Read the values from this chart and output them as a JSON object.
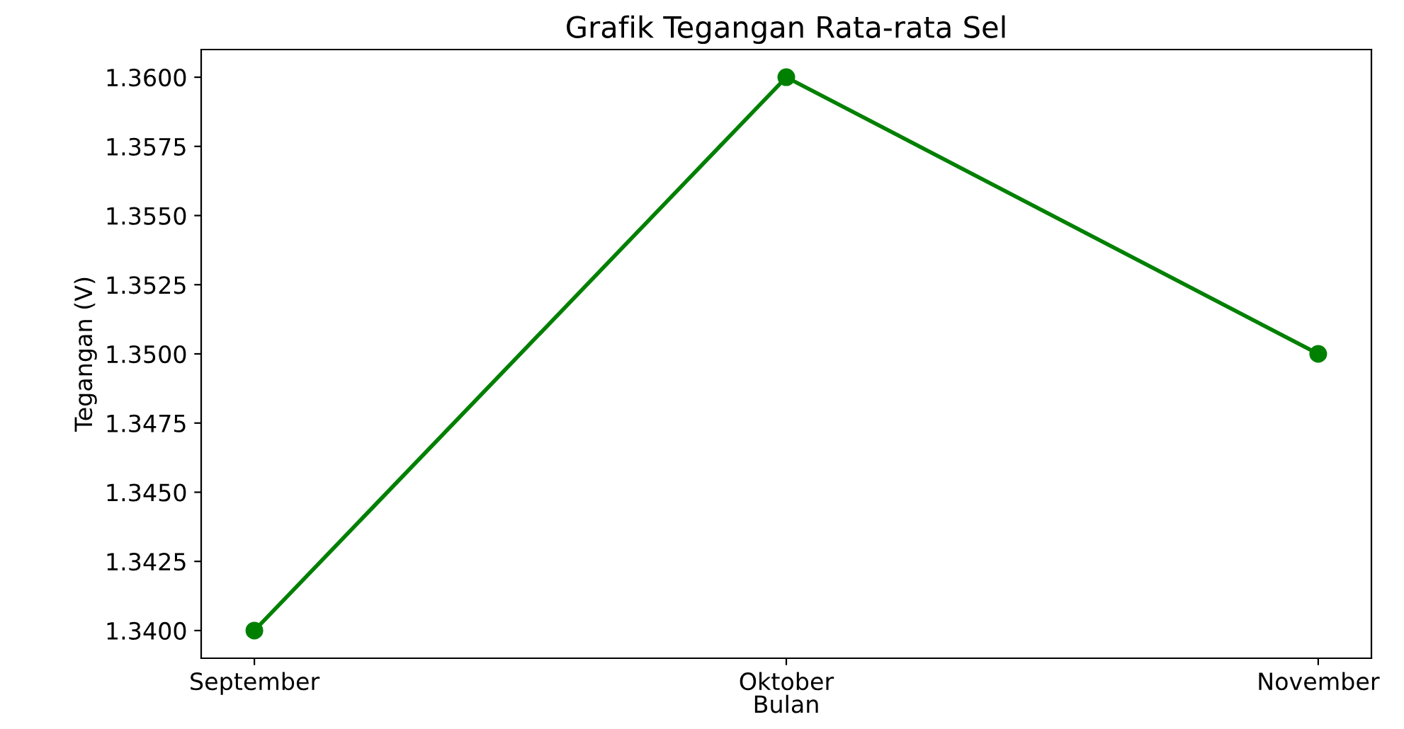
{
  "chart_data": {
    "type": "line",
    "title": "Grafik Tegangan Rata-rata Sel",
    "xlabel": "Bulan",
    "ylabel": "Tegangan (V)",
    "categories": [
      "September",
      "Oktober",
      "November"
    ],
    "series": [
      {
        "color": "#008000",
        "values": [
          1.34,
          1.36,
          1.35
        ]
      }
    ],
    "ylim": [
      1.339,
      1.361
    ],
    "yticks": [
      {
        "value": 1.34,
        "label": "1.3400"
      },
      {
        "value": 1.3425,
        "label": "1.3425"
      },
      {
        "value": 1.345,
        "label": "1.3450"
      },
      {
        "value": 1.3475,
        "label": "1.3475"
      },
      {
        "value": 1.35,
        "label": "1.3500"
      },
      {
        "value": 1.3525,
        "label": "1.3525"
      },
      {
        "value": 1.355,
        "label": "1.3550"
      },
      {
        "value": 1.3575,
        "label": "1.3575"
      },
      {
        "value": 1.36,
        "label": "1.3600"
      }
    ],
    "marker": "circle",
    "line_style": "solid",
    "grid": false,
    "legend": false
  }
}
